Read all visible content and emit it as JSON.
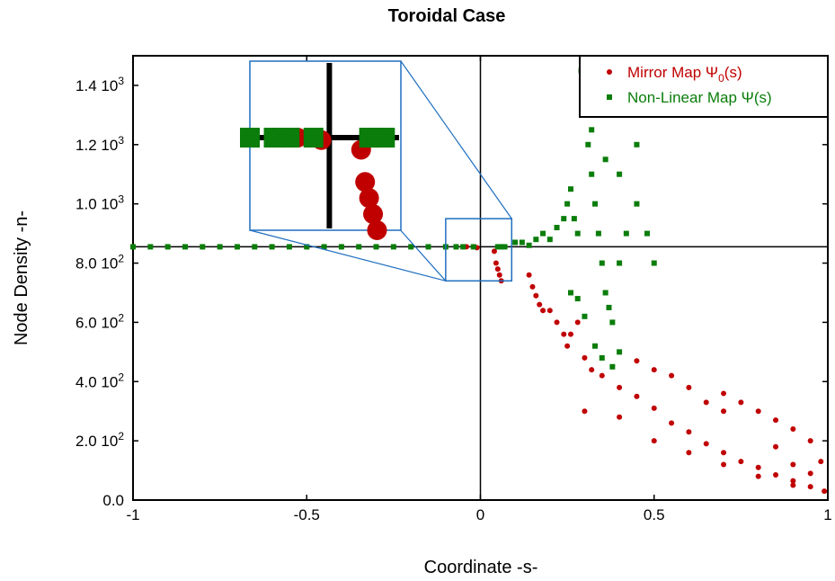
{
  "chart_data": {
    "type": "scatter",
    "title": "Toroidal Case",
    "xlabel": "Coordinate -s-",
    "ylabel": "Node Density -n-",
    "xlim": [
      -1,
      1
    ],
    "ylim": [
      0,
      1500
    ],
    "xticks": [
      {
        "value": -1,
        "label": "-1"
      },
      {
        "value": -0.5,
        "label": "-0.5"
      },
      {
        "value": 0,
        "label": "0"
      },
      {
        "value": 0.5,
        "label": "0.5"
      },
      {
        "value": 1,
        "label": "1"
      }
    ],
    "yticks": [
      {
        "value": 0,
        "mantissa": "0.0",
        "exp": ""
      },
      {
        "value": 200,
        "mantissa": "2.0 10",
        "exp": "2"
      },
      {
        "value": 400,
        "mantissa": "4.0 10",
        "exp": "2"
      },
      {
        "value": 600,
        "mantissa": "6.0 10",
        "exp": "2"
      },
      {
        "value": 800,
        "mantissa": "8.0 10",
        "exp": "2"
      },
      {
        "value": 1000,
        "mantissa": "1.0 10",
        "exp": "3"
      },
      {
        "value": 1200,
        "mantissa": "1.2 10",
        "exp": "3"
      },
      {
        "value": 1400,
        "mantissa": "1.4 10",
        "exp": "3"
      }
    ],
    "reference_lines": {
      "x": 0,
      "y": 855
    },
    "legend_position": "top-right",
    "grid": false,
    "series": [
      {
        "name": "Mirror Map Ψ0(s)",
        "legend_main": "Mirror Map Ψ",
        "legend_sub": "0",
        "legend_tail": "(s)",
        "color": "#c00000",
        "marker": "circle",
        "points": [
          [
            -1.0,
            855
          ],
          [
            -0.9,
            855
          ],
          [
            -0.8,
            855
          ],
          [
            -0.7,
            855
          ],
          [
            -0.6,
            855
          ],
          [
            -0.5,
            855
          ],
          [
            -0.4,
            855
          ],
          [
            -0.3,
            855
          ],
          [
            -0.2,
            855
          ],
          [
            -0.1,
            855
          ],
          [
            -0.07,
            855
          ],
          [
            -0.04,
            855
          ],
          [
            -0.01,
            852
          ],
          [
            0.04,
            840
          ],
          [
            0.045,
            800
          ],
          [
            0.05,
            780
          ],
          [
            0.055,
            760
          ],
          [
            0.06,
            740
          ],
          [
            0.14,
            760
          ],
          [
            0.15,
            720
          ],
          [
            0.16,
            690
          ],
          [
            0.17,
            660
          ],
          [
            0.18,
            640
          ],
          [
            0.2,
            640
          ],
          [
            0.22,
            600
          ],
          [
            0.24,
            560
          ],
          [
            0.25,
            520
          ],
          [
            0.26,
            560
          ],
          [
            0.28,
            600
          ],
          [
            0.3,
            480
          ],
          [
            0.32,
            440
          ],
          [
            0.35,
            420
          ],
          [
            0.4,
            380
          ],
          [
            0.45,
            350
          ],
          [
            0.5,
            310
          ],
          [
            0.55,
            260
          ],
          [
            0.6,
            230
          ],
          [
            0.65,
            190
          ],
          [
            0.7,
            160
          ],
          [
            0.75,
            130
          ],
          [
            0.8,
            110
          ],
          [
            0.85,
            85
          ],
          [
            0.9,
            65
          ],
          [
            0.95,
            45
          ],
          [
            0.99,
            30
          ],
          [
            0.3,
            300
          ],
          [
            0.4,
            280
          ],
          [
            0.5,
            200
          ],
          [
            0.6,
            160
          ],
          [
            0.7,
            120
          ],
          [
            0.8,
            80
          ],
          [
            0.9,
            50
          ],
          [
            0.5,
            440
          ],
          [
            0.6,
            380
          ],
          [
            0.7,
            360
          ],
          [
            0.75,
            330
          ],
          [
            0.8,
            300
          ],
          [
            0.85,
            270
          ],
          [
            0.9,
            240
          ],
          [
            0.95,
            200
          ],
          [
            0.98,
            130
          ],
          [
            0.45,
            470
          ],
          [
            0.55,
            420
          ],
          [
            0.65,
            330
          ],
          [
            0.7,
            300
          ],
          [
            0.85,
            180
          ],
          [
            0.9,
            120
          ],
          [
            0.95,
            90
          ]
        ]
      },
      {
        "name": "Non-Linear Map Ψ(s)",
        "legend_main": "Non-Linear Map Ψ(s)",
        "legend_sub": "",
        "legend_tail": "",
        "color": "#0a7d0a",
        "marker": "square",
        "points": [
          [
            -1.0,
            855
          ],
          [
            -0.95,
            855
          ],
          [
            -0.9,
            855
          ],
          [
            -0.85,
            855
          ],
          [
            -0.8,
            855
          ],
          [
            -0.75,
            855
          ],
          [
            -0.7,
            855
          ],
          [
            -0.65,
            855
          ],
          [
            -0.6,
            855
          ],
          [
            -0.55,
            855
          ],
          [
            -0.5,
            855
          ],
          [
            -0.45,
            855
          ],
          [
            -0.4,
            855
          ],
          [
            -0.35,
            855
          ],
          [
            -0.3,
            855
          ],
          [
            -0.25,
            855
          ],
          [
            -0.2,
            855
          ],
          [
            -0.15,
            855
          ],
          [
            -0.1,
            855
          ],
          [
            -0.07,
            855
          ],
          [
            -0.05,
            855
          ],
          [
            -0.02,
            855
          ],
          [
            0.05,
            855
          ],
          [
            0.06,
            855
          ],
          [
            0.07,
            855
          ],
          [
            0.1,
            870
          ],
          [
            0.12,
            870
          ],
          [
            0.14,
            860
          ],
          [
            0.16,
            880
          ],
          [
            0.18,
            900
          ],
          [
            0.2,
            880
          ],
          [
            0.22,
            920
          ],
          [
            0.24,
            950
          ],
          [
            0.25,
            1000
          ],
          [
            0.26,
            1050
          ],
          [
            0.27,
            950
          ],
          [
            0.28,
            900
          ],
          [
            0.29,
            1450
          ],
          [
            0.3,
            1300
          ],
          [
            0.31,
            1200
          ],
          [
            0.32,
            1100
          ],
          [
            0.33,
            1000
          ],
          [
            0.34,
            900
          ],
          [
            0.35,
            800
          ],
          [
            0.36,
            700
          ],
          [
            0.37,
            650
          ],
          [
            0.38,
            600
          ],
          [
            0.4,
            800
          ],
          [
            0.42,
            900
          ],
          [
            0.45,
            1000
          ],
          [
            0.48,
            900
          ],
          [
            0.5,
            800
          ],
          [
            0.26,
            700
          ],
          [
            0.28,
            680
          ],
          [
            0.3,
            620
          ],
          [
            0.33,
            520
          ],
          [
            0.35,
            480
          ],
          [
            0.38,
            450
          ],
          [
            0.4,
            500
          ],
          [
            0.3,
            1350
          ],
          [
            0.32,
            1250
          ],
          [
            0.36,
            1150
          ],
          [
            0.4,
            1100
          ],
          [
            0.45,
            1200
          ],
          [
            0.42,
            1300
          ]
        ]
      }
    ]
  },
  "inset": {
    "region": {
      "x": [
        -0.1,
        0.09
      ],
      "y": [
        740,
        950
      ]
    }
  }
}
